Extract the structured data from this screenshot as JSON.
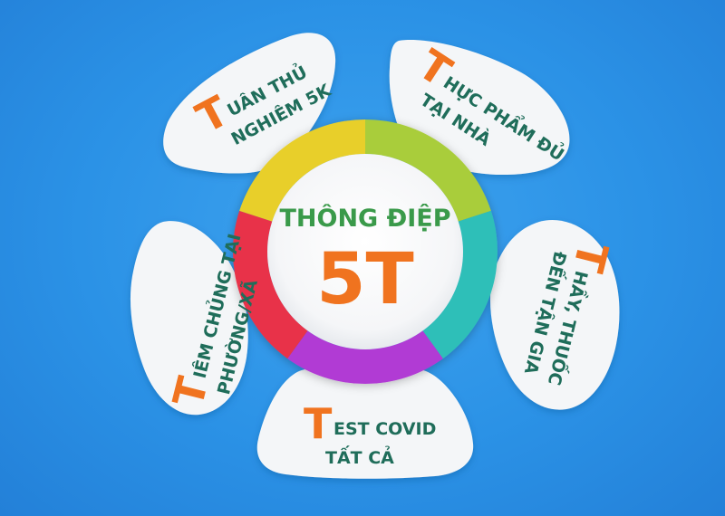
{
  "center": {
    "line1": "THÔNG ĐIỆP",
    "line2": "5T"
  },
  "colors": {
    "background": "#2b92e6",
    "petal": "#f4f6f8",
    "initial": "#f0731f",
    "text": "#1f6d5a",
    "center_title": "#3a9a4a",
    "center_number": "#f0731f",
    "ring": [
      "#a9cd3a",
      "#2fbfb8",
      "#b13ad4",
      "#e8314a",
      "#e8cf2a"
    ]
  },
  "petals": [
    {
      "key": "top-left",
      "initial": "T",
      "line1_rest": "UÂN THỦ",
      "line2": "NGHIÊM 5K"
    },
    {
      "key": "top-right",
      "initial": "T",
      "line1_rest": "HỰC PHẨM ĐỦ",
      "line2": "TẠI NHÀ"
    },
    {
      "key": "right",
      "initial": "T",
      "line1_rest": "HẦY, THUỐC",
      "line2": "ĐẾN TẬN GIA"
    },
    {
      "key": "bottom",
      "initial": "T",
      "line1_rest": "EST COVID",
      "line2": "TẤT CẢ"
    },
    {
      "key": "left",
      "initial": "T",
      "line1_rest": "IÊM CHỦNG TẠI",
      "line2": "PHƯỜNG/XÃ"
    }
  ]
}
